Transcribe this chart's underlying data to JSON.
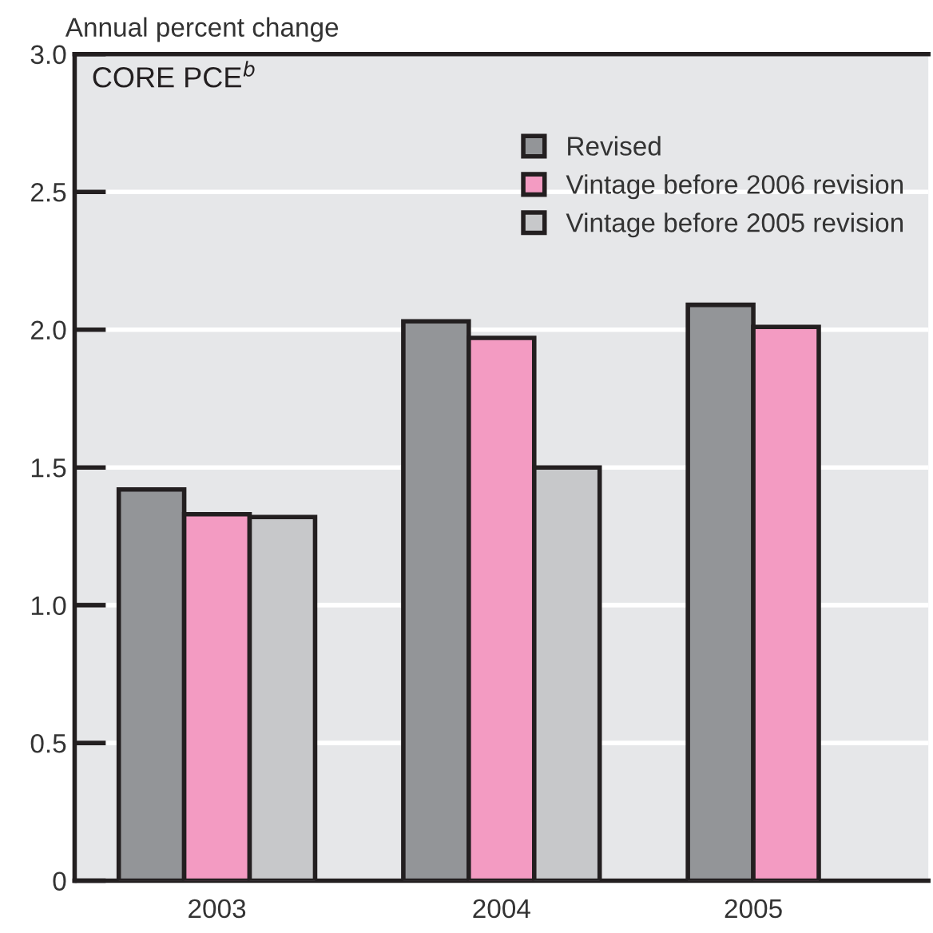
{
  "chart_data": {
    "type": "bar",
    "ylabel": "Annual percent change",
    "title": "CORE PCE$^{b}$",
    "categories": [
      "2003",
      "2004",
      "2005"
    ],
    "series": [
      {
        "name": "Revised",
        "color": "#939598",
        "values": [
          1.42,
          2.03,
          2.09
        ]
      },
      {
        "name": "Vintage before 2006 revision",
        "color": "#f39bc2",
        "values": [
          1.33,
          1.97,
          2.01
        ]
      },
      {
        "name": "Vintage before 2005 revision",
        "color": "#c7c8ca",
        "values": [
          1.32,
          1.5,
          null
        ]
      }
    ],
    "ylim": [
      0,
      3.0
    ],
    "yticks": [
      0,
      0.5,
      {
        "value": 1,
        "label": "1.0"
      },
      1.5,
      {
        "value": 2,
        "label": "2.0"
      },
      2.5,
      {
        "value": 3,
        "label": "3.0"
      }
    ],
    "grid": "y",
    "legend": "top right"
  }
}
